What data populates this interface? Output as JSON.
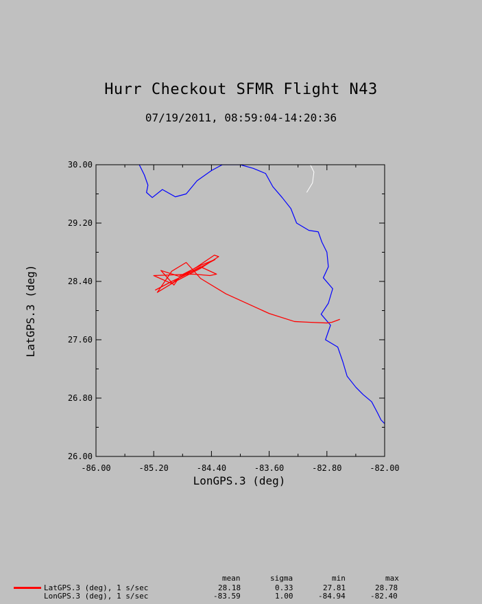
{
  "chart_data": {
    "type": "line",
    "title": "Hurr Checkout SFMR Flight N43",
    "subtitle": "07/19/2011, 08:59:04-14:20:36",
    "xlabel": "LonGPS.3 (deg)",
    "ylabel": "LatGPS.3 (deg)",
    "xlim": [
      -86.0,
      -82.0
    ],
    "ylim": [
      26.0,
      30.0
    ],
    "x_ticks": [
      "-86.00",
      "-85.20",
      "-84.40",
      "-83.60",
      "-82.80",
      "-82.00"
    ],
    "y_ticks": [
      "30.00",
      "29.20",
      "28.40",
      "27.60",
      "26.80",
      "26.00"
    ],
    "grid": false,
    "series": [
      {
        "name": "LatGPS.3 (deg), 1 s/sec",
        "color": "#ff0000",
        "x": [
          -82.62,
          -82.73,
          -82.8,
          -83.05,
          -83.25,
          -83.6,
          -84.2,
          -84.55,
          -84.75,
          -84.95,
          -85.15,
          -84.9,
          -84.55,
          -84.3,
          -84.36,
          -84.6,
          -84.85,
          -84.95,
          -85.2,
          -84.65,
          -84.42,
          -84.33,
          -84.55,
          -84.85,
          -84.92,
          -85.1,
          -84.85,
          -84.55,
          -84.35,
          -84.5,
          -84.8,
          -84.95,
          -85.18
        ],
        "y": [
          27.88,
          27.84,
          27.83,
          27.84,
          27.85,
          27.96,
          28.23,
          28.44,
          28.66,
          28.54,
          28.25,
          28.4,
          28.58,
          28.74,
          28.76,
          28.6,
          28.45,
          28.37,
          28.48,
          28.5,
          28.48,
          28.5,
          28.6,
          28.45,
          28.35,
          28.55,
          28.47,
          28.62,
          28.7,
          28.62,
          28.47,
          28.4,
          28.28
        ]
      }
    ],
    "coastline": {
      "color": "#0000ff",
      "x": [
        -85.4,
        -85.33,
        -85.28,
        -85.3,
        -85.22,
        -85.08,
        -84.9,
        -84.75,
        -84.6,
        -84.4,
        -84.25,
        -84.0,
        -83.82,
        -83.65,
        -83.55,
        -83.42,
        -83.3,
        -83.22,
        -83.05,
        -82.92,
        -82.87,
        -82.8,
        -82.78,
        -82.85,
        -82.72,
        -82.78,
        -82.88,
        -82.75,
        -82.82,
        -82.65,
        -82.58,
        -82.52,
        -82.4,
        -82.3,
        -82.18,
        -82.1,
        -82.05,
        -82.0
      ],
      "y": [
        30.0,
        29.86,
        29.72,
        29.62,
        29.55,
        29.66,
        29.56,
        29.6,
        29.78,
        29.92,
        30.0,
        30.0,
        29.95,
        29.88,
        29.7,
        29.55,
        29.4,
        29.2,
        29.1,
        29.08,
        28.94,
        28.8,
        28.6,
        28.45,
        28.3,
        28.1,
        27.95,
        27.8,
        27.6,
        27.5,
        27.3,
        27.1,
        26.95,
        26.85,
        26.75,
        26.6,
        26.5,
        26.45
      ]
    },
    "river": {
      "color": "#ffffff",
      "x": [
        -83.03,
        -82.98,
        -83.0,
        -83.08
      ],
      "y": [
        30.0,
        29.9,
        29.75,
        29.62
      ]
    },
    "legend_placement": "bottom-left"
  },
  "stats": {
    "headers": [
      "mean",
      "sigma",
      "min",
      "max"
    ],
    "rows": [
      {
        "label": "LatGPS.3 (deg), 1 s/sec",
        "mean": "28.18",
        "sigma": "0.33",
        "min": "27.81",
        "max": "28.78"
      },
      {
        "label": "LonGPS.3 (deg), 1 s/sec",
        "mean": "-83.59",
        "sigma": "1.00",
        "min": "-84.94",
        "max": "-82.40"
      }
    ]
  }
}
